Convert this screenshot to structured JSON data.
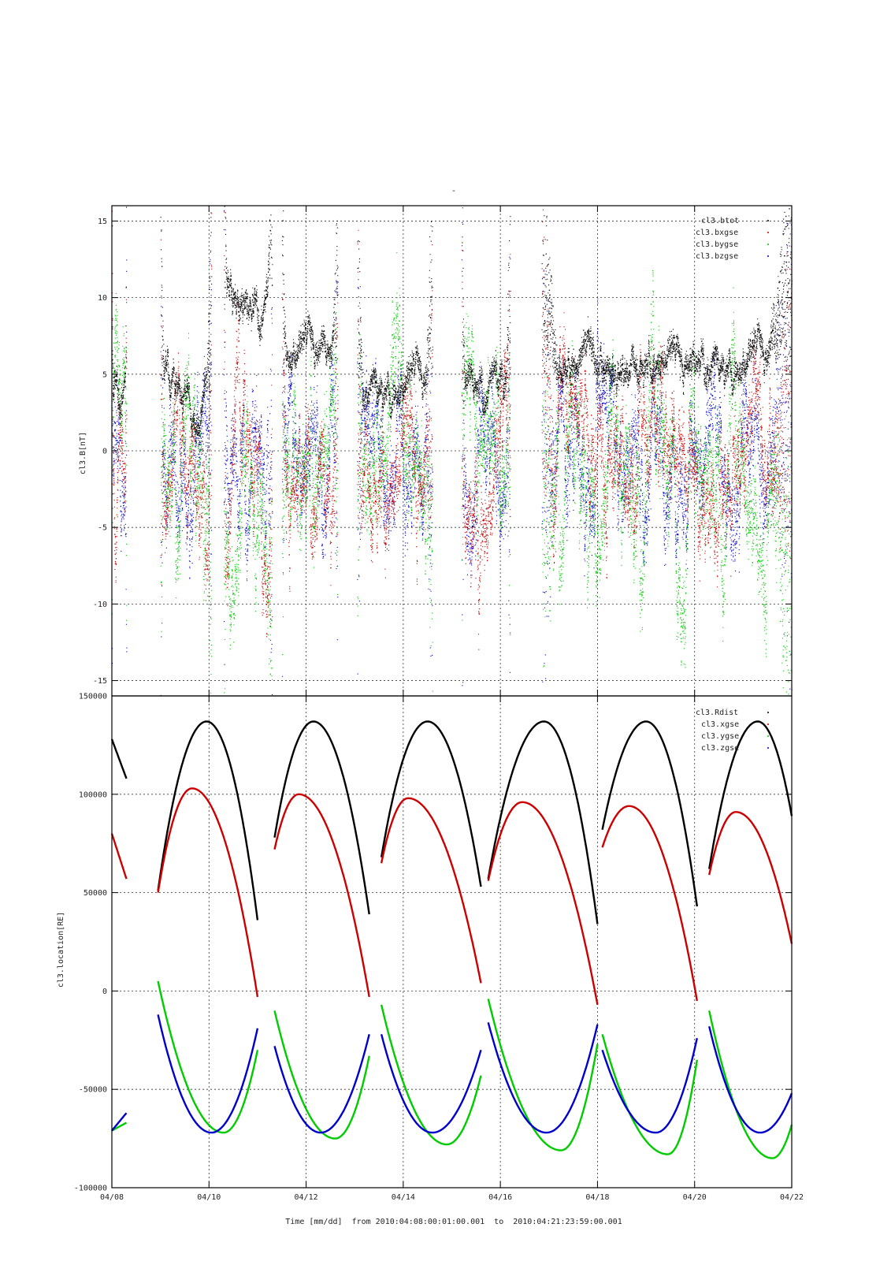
{
  "title_mark": "-",
  "colors": {
    "black": "#000000",
    "red": "#cc0000",
    "green": "#00cc00",
    "blue": "#0000cc"
  },
  "chart_data": [
    {
      "type": "scatter",
      "ylabel": "cl3.B[nT]",
      "ylim": [
        -16,
        16
      ],
      "yticks": [
        15,
        10,
        5,
        0,
        -5,
        -10,
        -15
      ],
      "xlim": [
        0,
        14
      ],
      "grid": true,
      "legend_placement": "top-right",
      "series": [
        {
          "name": "cl3.btot",
          "color": "#000000"
        },
        {
          "name": "cl3.bxgse",
          "color": "#cc0000"
        },
        {
          "name": "cl3.bygse",
          "color": "#00cc00"
        },
        {
          "name": "cl3.bzgse",
          "color": "#0000cc"
        }
      ],
      "segments": [
        {
          "x": [
            0.0,
            0.3
          ],
          "btot": 4.5,
          "bx": 2,
          "by": 0,
          "bz": 0
        },
        {
          "x": [
            1.0,
            2.05
          ],
          "btot": 3.5,
          "bx": -1.5,
          "by": -1.5,
          "bz": 0.5
        },
        {
          "x": [
            2.3,
            3.3
          ],
          "btot": 9.5,
          "bx": -2,
          "by": -5,
          "bz": 0
        },
        {
          "x": [
            3.5,
            4.65
          ],
          "btot": 6.5,
          "bx": -1,
          "by": 1,
          "bz": 1
        },
        {
          "x": [
            5.05,
            6.6
          ],
          "btot": 4.5,
          "bx": -1,
          "by": 2,
          "bz": 0.5
        },
        {
          "x": [
            7.2,
            8.2
          ],
          "btot": 4.2,
          "bx": -2,
          "by": 2,
          "bz": 0
        },
        {
          "x": [
            8.85,
            14.0
          ],
          "btot": 6,
          "bx": 2,
          "by": -2,
          "bz": 0.5
        }
      ]
    },
    {
      "type": "line",
      "ylabel": "cl3.location[RE]",
      "ylim": [
        -100000,
        150000
      ],
      "yticks": [
        150000,
        100000,
        50000,
        0,
        -50000,
        -100000
      ],
      "xlim": [
        0,
        14
      ],
      "xticks": [
        "04/08",
        "04/10",
        "04/12",
        "04/14",
        "04/16",
        "04/18",
        "04/20",
        "04/22"
      ],
      "xlabel": "Time [mm/dd]  from 2010:04:08:00:01:00.001  to  2010:04:21:23:59:00.001",
      "grid": true,
      "legend_placement": "top-right",
      "series": [
        {
          "name": "cl3.Rdist",
          "color": "#000000"
        },
        {
          "name": "cl3.xgse",
          "color": "#cc0000"
        },
        {
          "name": "cl3.ygse",
          "color": "#00cc00"
        },
        {
          "name": "cl3.zgse",
          "color": "#0000cc"
        }
      ],
      "segments": [
        {
          "x": [
            0.0,
            0.3
          ],
          "Rdist": [
            128000,
            108000
          ],
          "xgse": [
            80000,
            57000
          ],
          "ygse": [
            -71000,
            -67000
          ],
          "zgse": [
            -71000,
            -62000
          ]
        },
        {
          "x": [
            0.95,
            3.0
          ],
          "Rdist": [
            51000,
            137000,
            36000
          ],
          "Rpeak": 1.95,
          "xgse": [
            50000,
            103000,
            -3000
          ],
          "xpeak": 1.65,
          "ygse": [
            5000,
            -72000,
            -30000
          ],
          "ymin": 2.3,
          "zgse": [
            -12000,
            -72000,
            -19000
          ],
          "zmin": 2.05
        },
        {
          "x": [
            3.35,
            5.3
          ],
          "Rdist": [
            78000,
            137000,
            39000
          ],
          "Rpeak": 4.15,
          "xgse": [
            72000,
            100000,
            -3000
          ],
          "xpeak": 3.85,
          "ygse": [
            -10000,
            -75000,
            -33000
          ],
          "ymin": 4.6,
          "zgse": [
            -28000,
            -72000,
            -22000
          ],
          "zmin": 4.3
        },
        {
          "x": [
            5.55,
            7.6
          ],
          "Rdist": [
            68000,
            137000,
            53000
          ],
          "Rpeak": 6.5,
          "xgse": [
            65000,
            98000,
            4000
          ],
          "xpeak": 6.1,
          "ygse": [
            -7000,
            -78000,
            -43000
          ],
          "ymin": 6.9,
          "zgse": [
            -22000,
            -72000,
            -30000
          ],
          "zmin": 6.6
        },
        {
          "x": [
            7.75,
            10.0
          ],
          "Rdist": [
            57000,
            137000,
            34000
          ],
          "Rpeak": 8.9,
          "xgse": [
            56000,
            96000,
            -7000
          ],
          "xpeak": 8.45,
          "ygse": [
            -4000,
            -81000,
            -27000
          ],
          "ymin": 9.25,
          "zgse": [
            -16000,
            -72000,
            -17000
          ],
          "zmin": 8.95
        },
        {
          "x": [
            10.1,
            12.05
          ],
          "Rdist": [
            82000,
            137000,
            43000
          ],
          "Rpeak": 11.0,
          "xgse": [
            73000,
            94000,
            -5000
          ],
          "xpeak": 10.65,
          "ygse": [
            -22000,
            -83000,
            -35000
          ],
          "ymin": 11.45,
          "zgse": [
            -30000,
            -72000,
            -24000
          ],
          "zmin": 11.2
        },
        {
          "x": [
            12.3,
            14.0
          ],
          "Rdist": [
            62000,
            137000,
            89000
          ],
          "Rpeak": 13.3,
          "xgse": [
            59000,
            91000,
            24000
          ],
          "xpeak": 12.85,
          "ygse": [
            -10000,
            -85000,
            -68000
          ],
          "ymin": 13.6,
          "zgse": [
            -18000,
            -72000,
            -52000
          ],
          "zmin": 13.35
        }
      ]
    }
  ]
}
